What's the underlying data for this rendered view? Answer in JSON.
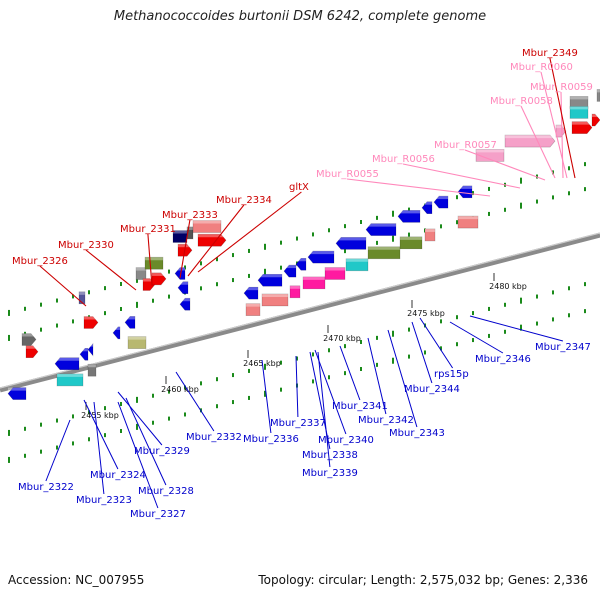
{
  "title": "Methanococcoides burtonii DSM 6242, complete genome",
  "footer": {
    "accession": "Accession: NC_007955",
    "summary": "Topology: circular; Length: 2,575,032 bp; Genes: 2,336"
  },
  "colors": {
    "red_label": "#cc0000",
    "pink_label": "#ff88bb",
    "blue_label": "#0000cc",
    "backbone": "#888888"
  },
  "scale_ticks": [
    {
      "label": "2455 kbp"
    },
    {
      "label": "2460 kbp"
    },
    {
      "label": "2465 kbp"
    },
    {
      "label": "2470 kbp"
    },
    {
      "label": "2475 kbp"
    },
    {
      "label": "2480 kbp"
    }
  ],
  "labels_top": [
    {
      "text": "Mbur_2326",
      "color": "red"
    },
    {
      "text": "Mbur_2330",
      "color": "red"
    },
    {
      "text": "Mbur_2331",
      "color": "red"
    },
    {
      "text": "Mbur_2333",
      "color": "red"
    },
    {
      "text": "Mbur_2334",
      "color": "red"
    },
    {
      "text": "gltX",
      "color": "red"
    },
    {
      "text": "Mbur_R0055",
      "color": "pink"
    },
    {
      "text": "Mbur_R0056",
      "color": "pink"
    },
    {
      "text": "Mbur_R0057",
      "color": "pink"
    },
    {
      "text": "Mbur_R0058",
      "color": "pink"
    },
    {
      "text": "Mbur_R0059",
      "color": "pink"
    },
    {
      "text": "Mbur_R0060",
      "color": "pink"
    },
    {
      "text": "Mbur_2349",
      "color": "red"
    }
  ],
  "labels_bottom": [
    {
      "text": "Mbur_2322"
    },
    {
      "text": "Mbur_2323"
    },
    {
      "text": "Mbur_2324"
    },
    {
      "text": "Mbur_2327"
    },
    {
      "text": "Mbur_2328"
    },
    {
      "text": "Mbur_2329"
    },
    {
      "text": "Mbur_2332"
    },
    {
      "text": "Mbur_2336"
    },
    {
      "text": "Mbur_2337"
    },
    {
      "text": "Mbur_2338"
    },
    {
      "text": "Mbur_2339"
    },
    {
      "text": "Mbur_2340"
    },
    {
      "text": "Mbur_2341"
    },
    {
      "text": "Mbur_2342"
    },
    {
      "text": "Mbur_2343"
    },
    {
      "text": "Mbur_2344"
    },
    {
      "text": "rps15p"
    },
    {
      "text": "Mbur_2346"
    },
    {
      "text": "Mbur_2347"
    }
  ]
}
